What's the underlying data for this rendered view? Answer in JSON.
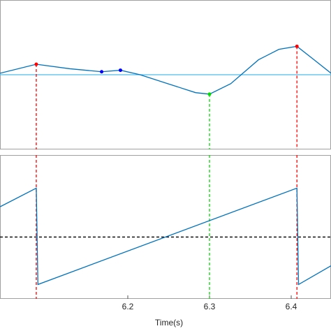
{
  "chart_data": [
    {
      "type": "line",
      "xlim": [
        6.0436,
        6.4487
      ],
      "ylim": [
        0,
        1
      ],
      "series": [
        {
          "color": "#0072bd",
          "style": "line",
          "x": [
            6.0436,
            6.088,
            6.129,
            6.168,
            6.191,
            6.215,
            6.249,
            6.283,
            6.3,
            6.326,
            6.36,
            6.385,
            6.407,
            6.428,
            6.4487
          ],
          "values": [
            0.51,
            0.57,
            0.54,
            0.52,
            0.53,
            0.5,
            0.44,
            0.38,
            0.37,
            0.44,
            0.6,
            0.67,
            0.69,
            0.6,
            0.51
          ]
        },
        {
          "color": "#ff0000",
          "style": "marker",
          "drop": true,
          "x": [
            6.088,
            6.407
          ],
          "values": [
            0.57,
            0.69
          ]
        },
        {
          "color": "#0000ff",
          "style": "marker",
          "drop": false,
          "x": [
            6.168,
            6.191
          ],
          "values": [
            0.52,
            0.53
          ]
        },
        {
          "color": "#00dd00",
          "style": "marker",
          "drop": true,
          "x": [
            6.3
          ],
          "values": [
            0.37
          ]
        }
      ],
      "hlines": [
        {
          "value": 0.5,
          "color": "#4dbeee",
          "dashed": false
        }
      ]
    },
    {
      "type": "line",
      "xlim": [
        6.0436,
        6.4487
      ],
      "ylim": [
        0,
        1
      ],
      "xticks": [
        6.2,
        6.3,
        6.4
      ],
      "xlabel": "Time(s)",
      "series": [
        {
          "color": "#0072bd",
          "style": "line",
          "x": [
            6.0436,
            6.088,
            6.09,
            6.407,
            6.409,
            6.4487
          ],
          "values": [
            0.64,
            0.77,
            0.1,
            0.77,
            0.1,
            0.23
          ]
        }
      ],
      "hlines": [
        {
          "value": 0.43,
          "color": "#000000",
          "dashed": true
        }
      ],
      "vlines": [
        {
          "value": 6.088,
          "color": "#ff0000"
        },
        {
          "value": 6.3,
          "color": "#00dd00"
        },
        {
          "value": 6.407,
          "color": "#ff0000"
        }
      ]
    }
  ]
}
